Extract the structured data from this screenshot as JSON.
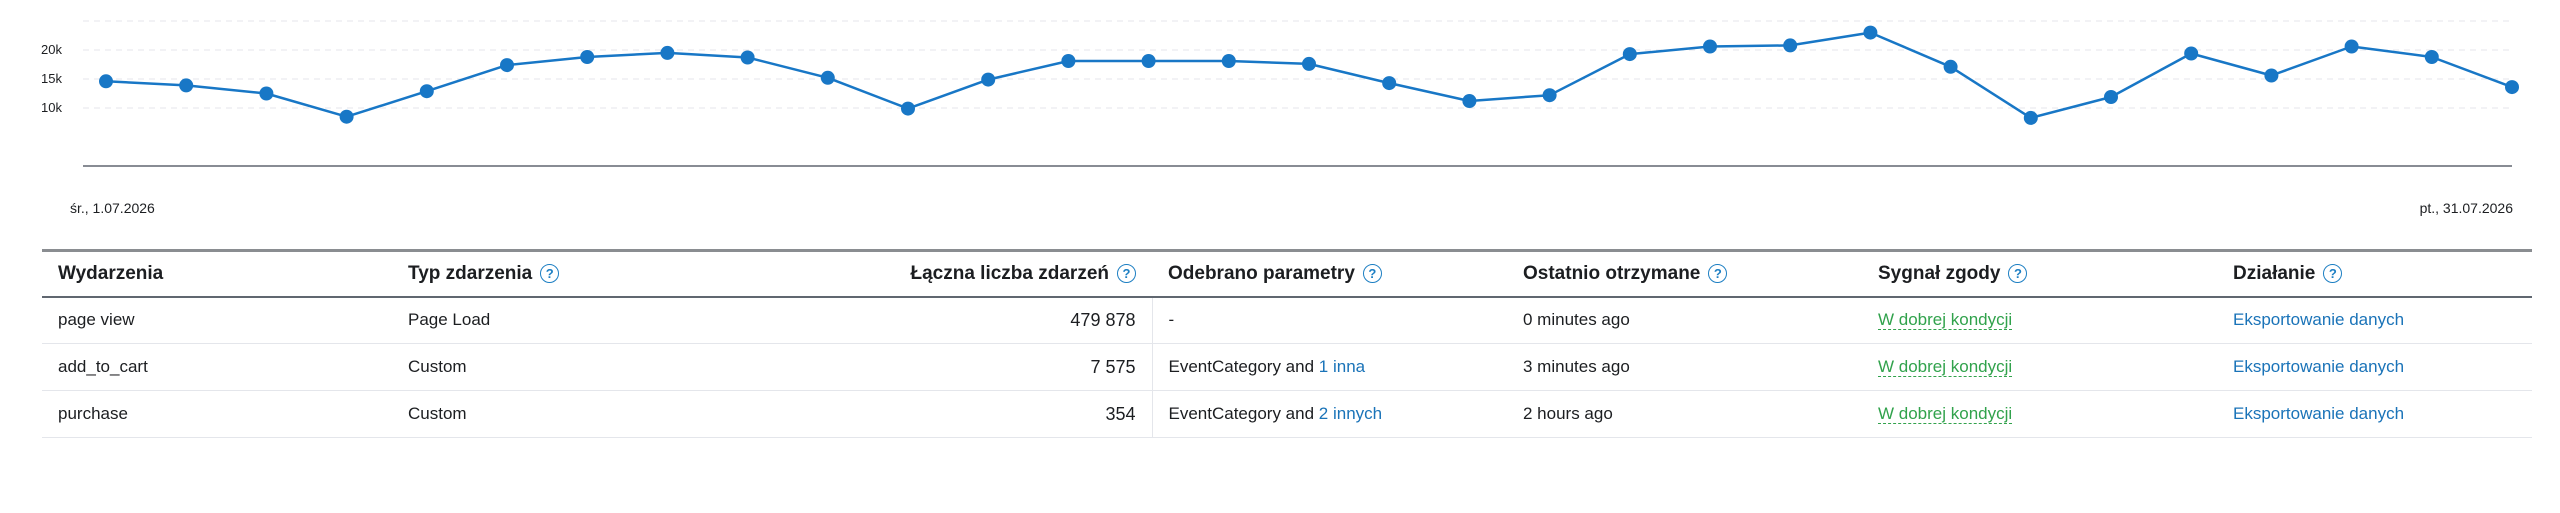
{
  "chart_data": {
    "type": "line",
    "x": [
      "1.07",
      "2.07",
      "3.07",
      "4.07",
      "5.07",
      "6.07",
      "7.07",
      "8.07",
      "9.07",
      "10.07",
      "11.07",
      "12.07",
      "13.07",
      "14.07",
      "15.07",
      "16.07",
      "17.07",
      "18.07",
      "19.07",
      "20.07",
      "21.07",
      "22.07",
      "23.07",
      "24.07",
      "25.07",
      "26.07",
      "27.07",
      "28.07",
      "29.07",
      "30.07",
      "31.07"
    ],
    "values": [
      14600,
      13900,
      12500,
      8500,
      12900,
      17400,
      18800,
      19500,
      18700,
      15200,
      9900,
      14900,
      18100,
      18100,
      18100,
      17600,
      14300,
      11200,
      12200,
      19300,
      20600,
      20800,
      23000,
      17100,
      8300,
      11900,
      19400,
      15600,
      20600,
      18800,
      13600
    ],
    "ytick_labels": [
      "20k",
      "15k",
      "10k"
    ],
    "ytick_values": [
      20000,
      15000,
      10000
    ],
    "ylim": [
      0,
      25000
    ],
    "grid": true,
    "start_label": "śr., 1.07.2026",
    "end_label": "pt., 31.07.2026",
    "line_color": "#1877c6"
  },
  "table": {
    "headers": {
      "events": "Wydarzenia",
      "type": "Typ zdarzenia",
      "total": "Łączna liczba zdarzeń",
      "params": "Odebrano parametry",
      "last": "Ostatnio otrzymane",
      "signal": "Sygnał zgody",
      "action": "Działanie"
    },
    "help_glyph": "?",
    "rows": [
      {
        "event": "page view",
        "type": "Page Load",
        "total": "479 878",
        "params_text": "-",
        "params_link": "",
        "last": "0 minutes ago",
        "signal": "W dobrej kondycji",
        "action": "Eksportowanie danych"
      },
      {
        "event": "add_to_cart",
        "type": "Custom",
        "total": "7 575",
        "params_text": "EventCategory and",
        "params_link": "1 inna",
        "last": "3 minutes ago",
        "signal": "W dobrej kondycji",
        "action": "Eksportowanie danych"
      },
      {
        "event": "purchase",
        "type": "Custom",
        "total": "354",
        "params_text": "EventCategory and",
        "params_link": "2 innych",
        "last": "2 hours ago",
        "signal": "W dobrej kondycji",
        "action": "Eksportowanie danych"
      }
    ]
  }
}
